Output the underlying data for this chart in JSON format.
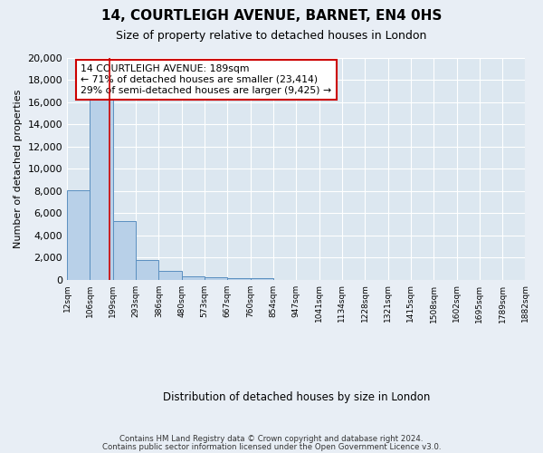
{
  "title": "14, COURTLEIGH AVENUE, BARNET, EN4 0HS",
  "subtitle": "Size of property relative to detached houses in London",
  "xlabel": "Distribution of detached houses by size in London",
  "ylabel": "Number of detached properties",
  "bin_labels": [
    "12sqm",
    "106sqm",
    "199sqm",
    "293sqm",
    "386sqm",
    "480sqm",
    "573sqm",
    "667sqm",
    "760sqm",
    "854sqm",
    "947sqm",
    "1041sqm",
    "1134sqm",
    "1228sqm",
    "1321sqm",
    "1415sqm",
    "1508sqm",
    "1602sqm",
    "1695sqm",
    "1789sqm",
    "1882sqm"
  ],
  "bar_heights": [
    8100,
    16500,
    5300,
    1800,
    750,
    300,
    175,
    125,
    100,
    0,
    0,
    0,
    0,
    0,
    0,
    0,
    0,
    0,
    0,
    0
  ],
  "bar_color": "#b8d0e8",
  "bar_edgecolor": "#5a8fc0",
  "property_line_x": 1.87,
  "annotation_text1": "14 COURTLEIGH AVENUE: 189sqm",
  "annotation_text2": "← 71% of detached houses are smaller (23,414)",
  "annotation_text3": "29% of semi-detached houses are larger (9,425) →",
  "annotation_box_color": "#ffffff",
  "annotation_border_color": "#cc0000",
  "ylim": [
    0,
    20000
  ],
  "yticks": [
    0,
    2000,
    4000,
    6000,
    8000,
    10000,
    12000,
    14000,
    16000,
    18000,
    20000
  ],
  "bg_color": "#e8eef5",
  "plot_bg_color": "#dce7f0",
  "footer1": "Contains HM Land Registry data © Crown copyright and database right 2024.",
  "footer2": "Contains public sector information licensed under the Open Government Licence v3.0."
}
